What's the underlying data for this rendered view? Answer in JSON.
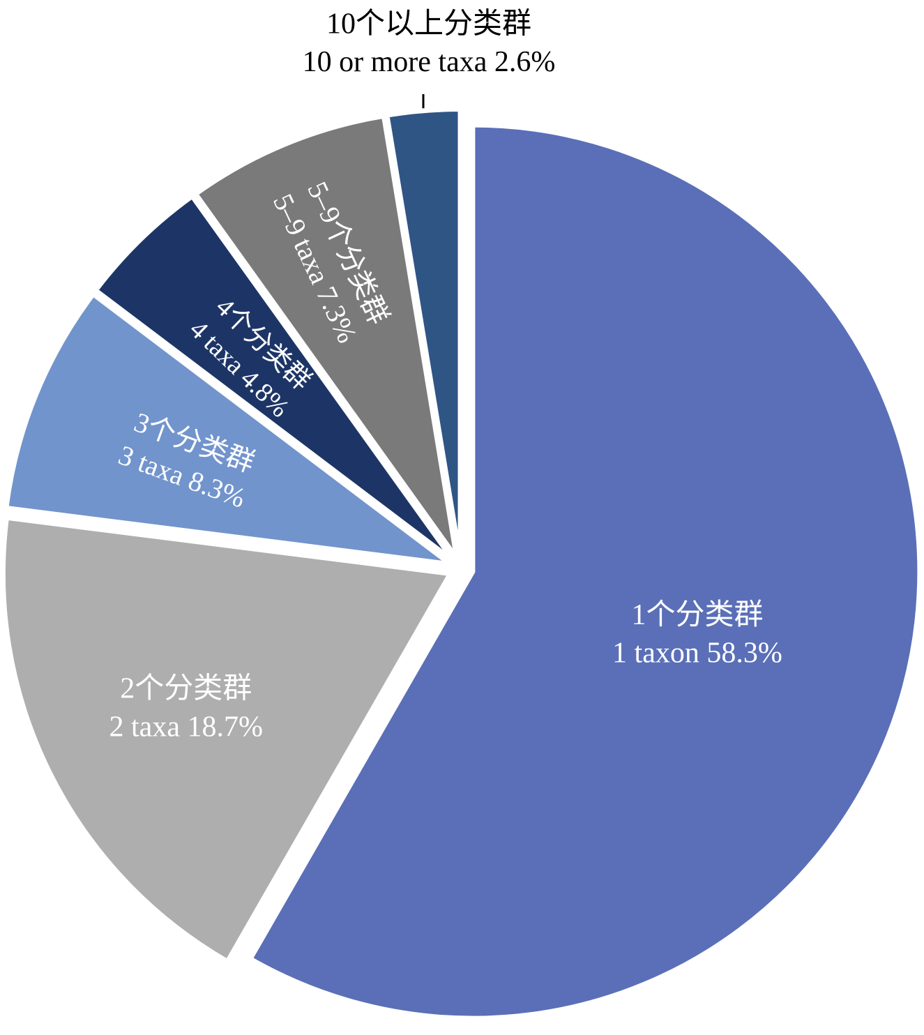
{
  "chart_data": {
    "type": "pie",
    "title": "",
    "slices": [
      {
        "label_zh": "1个分类群",
        "label_en": "1 taxon",
        "value": 58.3,
        "value_label": "58.3%",
        "color": "#5A6FB7",
        "text_color": "#ffffff"
      },
      {
        "label_zh": "2个分类群",
        "label_en": "2 taxa",
        "value": 18.7,
        "value_label": "18.7%",
        "color": "#AEAEAE",
        "text_color": "#ffffff"
      },
      {
        "label_zh": "3个分类群",
        "label_en": "3 taxa",
        "value": 8.3,
        "value_label": "8.3%",
        "color": "#7294CC",
        "text_color": "#ffffff"
      },
      {
        "label_zh": "4个分类群",
        "label_en": "4 taxa",
        "value": 4.8,
        "value_label": "4.8%",
        "color": "#1D3566",
        "text_color": "#ffffff"
      },
      {
        "label_zh": "5–9个分类群",
        "label_en": "5–9 taxa",
        "value": 7.3,
        "value_label": "7.3%",
        "color": "#7A7A7A",
        "text_color": "#ffffff"
      },
      {
        "label_zh": "10个以上分类群",
        "label_en": "10 or more taxa",
        "value": 2.6,
        "value_label": "2.6%",
        "color": "#2F5585",
        "text_color": "#000000"
      }
    ],
    "direction": "clockwise",
    "start": "top",
    "legend": "none"
  }
}
